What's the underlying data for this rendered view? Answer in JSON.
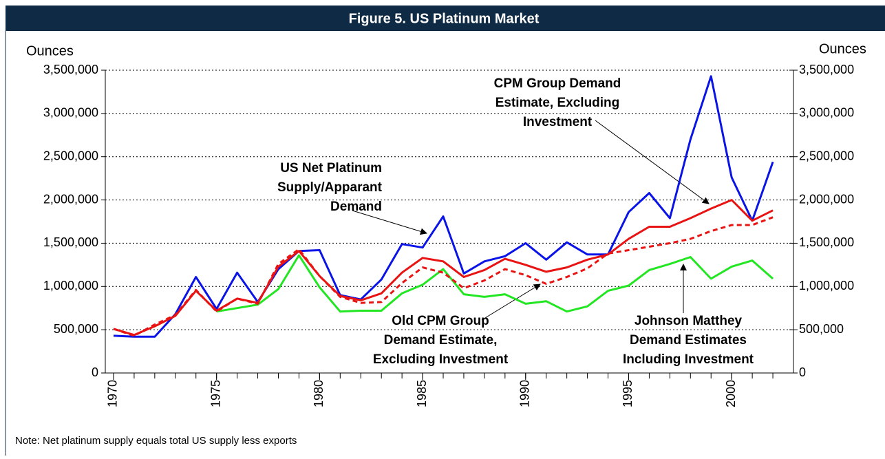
{
  "chart_data": {
    "type": "line",
    "title": "Figure 5. US Platinum Market",
    "y_label": "Ounces",
    "y2_label": "Ounces",
    "note": "Note:  Net platinum supply equals total US supply less exports",
    "x": [
      1970,
      1971,
      1972,
      1973,
      1974,
      1975,
      1976,
      1977,
      1978,
      1979,
      1980,
      1981,
      1982,
      1983,
      1984,
      1985,
      1986,
      1987,
      1988,
      1989,
      1990,
      1991,
      1992,
      1993,
      1994,
      1995,
      1996,
      1997,
      1998,
      1999,
      2000,
      2001,
      2002
    ],
    "series": [
      {
        "name": "US Net Platinum Supply/Apparant Demand",
        "color": "#0a14e6",
        "dashed": false,
        "values": [
          430000,
          420000,
          420000,
          680000,
          1110000,
          740000,
          1160000,
          820000,
          1200000,
          1410000,
          1420000,
          900000,
          850000,
          1080000,
          1490000,
          1450000,
          1810000,
          1150000,
          1290000,
          1350000,
          1500000,
          1310000,
          1510000,
          1370000,
          1370000,
          1860000,
          2080000,
          1790000,
          2700000,
          3430000,
          2260000,
          1760000,
          2440000
        ]
      },
      {
        "name": "Johnson Matthey Demand Estimates Including Investment",
        "color": "#22e622",
        "dashed": false,
        "values": [
          null,
          null,
          null,
          null,
          null,
          710000,
          750000,
          790000,
          970000,
          1360000,
          990000,
          710000,
          720000,
          720000,
          920000,
          1020000,
          1200000,
          910000,
          880000,
          910000,
          800000,
          830000,
          710000,
          770000,
          950000,
          1010000,
          1190000,
          1260000,
          1340000,
          1090000,
          1230000,
          1300000,
          1090000
        ]
      },
      {
        "name": "Old CPM Group Demand Estimate, Excluding Investment",
        "color": "#e81414",
        "dashed": true,
        "values": [
          510000,
          430000,
          560000,
          670000,
          960000,
          710000,
          860000,
          800000,
          1260000,
          1430000,
          1120000,
          880000,
          810000,
          820000,
          1040000,
          1220000,
          1160000,
          980000,
          1070000,
          1200000,
          1130000,
          1030000,
          1110000,
          1210000,
          1380000,
          1420000,
          1460000,
          1500000,
          1550000,
          1640000,
          1710000,
          1710000,
          1800000
        ]
      },
      {
        "name": "CPM Group Demand Estimate, Excluding Investment",
        "color": "#e81414",
        "dashed": false,
        "values": [
          510000,
          440000,
          540000,
          660000,
          950000,
          720000,
          860000,
          810000,
          1230000,
          1410000,
          1120000,
          890000,
          840000,
          920000,
          1160000,
          1330000,
          1290000,
          1110000,
          1190000,
          1320000,
          1250000,
          1170000,
          1220000,
          1310000,
          1370000,
          1550000,
          1690000,
          1690000,
          1790000,
          1900000,
          2000000,
          1760000,
          1880000
        ]
      }
    ],
    "annotations": [
      {
        "lines": [
          "CPM Group Demand",
          "Estimate, Excluding",
          "Investment"
        ]
      },
      {
        "lines": [
          "US Net Platinum",
          "Supply/Apparant",
          "Demand"
        ]
      },
      {
        "lines": [
          "Old CPM Group",
          "Demand Estimate,",
          "Excluding Investment"
        ]
      },
      {
        "lines": [
          "Johnson Matthey",
          "Demand Estimates",
          "Including Investment"
        ]
      }
    ],
    "xlim": [
      1969.6,
      2003
    ],
    "xticks": [
      1970,
      1975,
      1980,
      1985,
      1990,
      1995,
      2000
    ],
    "xminor_ticks": [
      1970,
      1971,
      1972,
      1973,
      1974,
      1975,
      1976,
      1977,
      1978,
      1979,
      1980,
      1981,
      1982,
      1983,
      1984,
      1985,
      1986,
      1987,
      1988,
      1989,
      1990,
      1991,
      1992,
      1993,
      1994,
      1995,
      1996,
      1997,
      1998,
      1999,
      2000,
      2001,
      2002
    ],
    "ylim": [
      0,
      3500000
    ],
    "yticks": [
      0,
      {
        "value": 500000,
        "label": "500,000"
      },
      {
        "value": 1000000,
        "label": "1,000,000"
      },
      {
        "value": 1500000,
        "label": "1,500,000"
      },
      {
        "value": 2000000,
        "label": "2,000,000"
      },
      {
        "value": 2500000,
        "label": "2,500,000"
      },
      {
        "value": 3000000,
        "label": "3,000,000"
      },
      {
        "value": 3500000,
        "label": "3,500,000"
      }
    ],
    "y2lim": [
      0,
      3500000
    ],
    "y2ticks": [
      0,
      {
        "value": 500000,
        "label": "500,000"
      },
      {
        "value": 1000000,
        "label": "1,000,000"
      },
      {
        "value": 1500000,
        "label": "1,500,000"
      },
      {
        "value": 2000000,
        "label": "2,000,000"
      },
      {
        "value": 2500000,
        "label": "2,500,000"
      },
      {
        "value": 3000000,
        "label": "3,000,000"
      },
      {
        "value": 3500000,
        "label": "3,500,000"
      }
    ],
    "grid": true
  }
}
